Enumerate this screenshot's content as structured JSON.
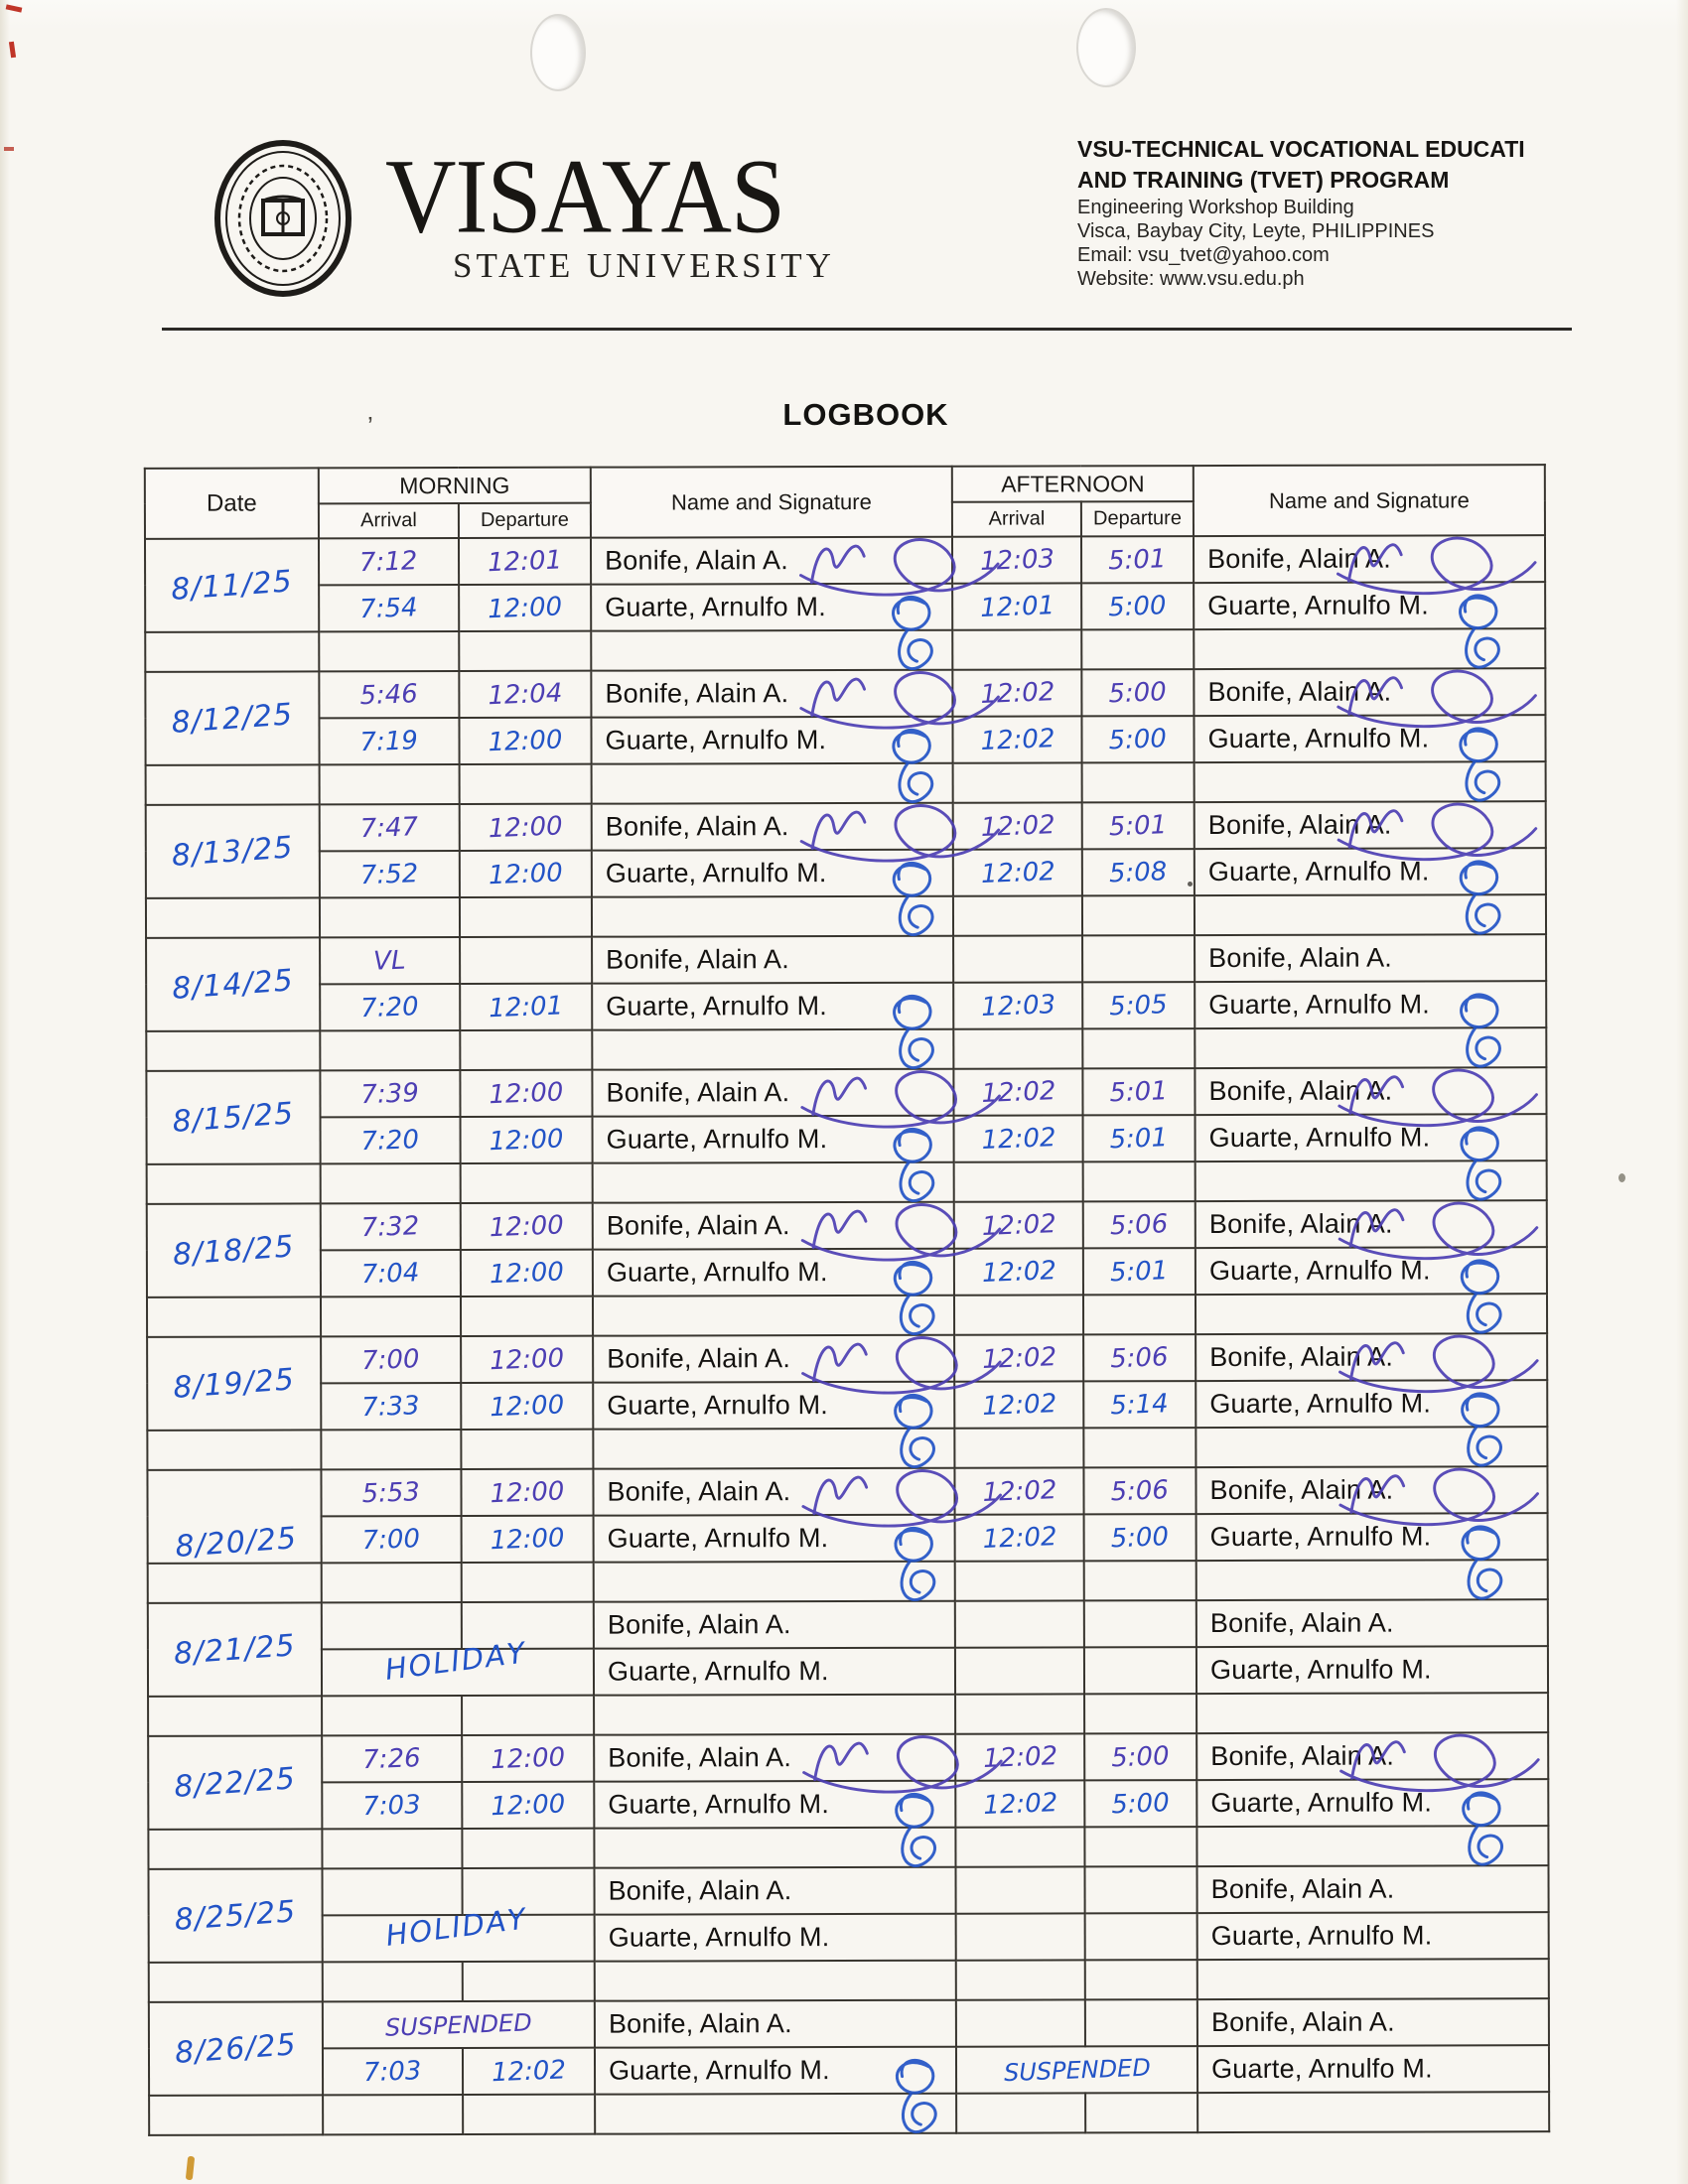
{
  "header": {
    "university_name": "VISAYAS",
    "university_subtitle": "STATE UNIVERSITY",
    "program_line1": "VSU-TECHNICAL VOCATIONAL EDUCATI",
    "program_line2": "AND TRAINING (TVET) PROGRAM",
    "address_line1": "Engineering Workshop Building",
    "address_line2": "Visca, Baybay City, Leyte, PHILIPPINES",
    "email_line": "Email: vsu_tvet@yahoo.com",
    "website_line": "Website: www.vsu.edu.ph"
  },
  "title": "LOGBOOK",
  "colors": {
    "ink_blue": "#2253c6",
    "ink_purple": "#4c3eb3",
    "table_line": "#38352f",
    "paper": "#f8f6f1"
  },
  "table": {
    "headers": {
      "date": "Date",
      "morning": "MORNING",
      "afternoon": "AFTERNOON",
      "arrival": "Arrival",
      "departure": "Departure",
      "name_sig": "Name and Signature"
    },
    "blocks": [
      {
        "date": "8/11/25",
        "rows": [
          {
            "name": "Bonife, Alain A.",
            "ink": "p",
            "m_arr": "7:12",
            "m_dep": "12:01",
            "a_arr": "12:03",
            "a_dep": "5:01",
            "sig_m": true,
            "sig_a": true
          },
          {
            "name": "Guarte, Arnulfo M.",
            "ink": "b",
            "m_arr": "7:54",
            "m_dep": "12:00",
            "a_arr": "12:01",
            "a_dep": "5:00",
            "sig_m": true,
            "sig_a": true
          }
        ]
      },
      {
        "date": "8/12/25",
        "rows": [
          {
            "name": "Bonife, Alain A.",
            "ink": "p",
            "m_arr": "5:46",
            "m_dep": "12:04",
            "a_arr": "12:02",
            "a_dep": "5:00",
            "sig_m": true,
            "sig_a": true
          },
          {
            "name": "Guarte, Arnulfo M.",
            "ink": "b",
            "m_arr": "7:19",
            "m_dep": "12:00",
            "a_arr": "12:02",
            "a_dep": "5:00",
            "sig_m": true,
            "sig_a": true
          }
        ]
      },
      {
        "date": "8/13/25",
        "rows": [
          {
            "name": "Bonife, Alain A.",
            "ink": "p",
            "m_arr": "7:47",
            "m_dep": "12:00",
            "a_arr": "12:02",
            "a_dep": "5:01",
            "sig_m": true,
            "sig_a": true
          },
          {
            "name": "Guarte, Arnulfo M.",
            "ink": "b",
            "m_arr": "7:52",
            "m_dep": "12:00",
            "a_arr": "12:02",
            "a_dep": "5:08",
            "sig_m": true,
            "sig_a": true
          }
        ]
      },
      {
        "date": "8/14/25",
        "rows": [
          {
            "name": "Bonife, Alain A.",
            "ink": "p",
            "m_arr": "VL",
            "m_dep": "",
            "a_arr": "",
            "a_dep": "",
            "sig_m": false,
            "sig_a": false
          },
          {
            "name": "Guarte, Arnulfo M.",
            "ink": "b",
            "m_arr": "7:20",
            "m_dep": "12:01",
            "a_arr": "12:03",
            "a_dep": "5:05",
            "sig_m": true,
            "sig_a": true
          }
        ]
      },
      {
        "date": "8/15/25",
        "rows": [
          {
            "name": "Bonife, Alain A.",
            "ink": "p",
            "m_arr": "7:39",
            "m_dep": "12:00",
            "a_arr": "12:02",
            "a_dep": "5:01",
            "sig_m": true,
            "sig_a": true
          },
          {
            "name": "Guarte, Arnulfo M.",
            "ink": "b",
            "m_arr": "7:20",
            "m_dep": "12:00",
            "a_arr": "12:02",
            "a_dep": "5:01",
            "sig_m": true,
            "sig_a": true
          }
        ]
      },
      {
        "date": "8/18/25",
        "rows": [
          {
            "name": "Bonife, Alain A.",
            "ink": "p",
            "m_arr": "7:32",
            "m_dep": "12:00",
            "a_arr": "12:02",
            "a_dep": "5:06",
            "sig_m": true,
            "sig_a": true
          },
          {
            "name": "Guarte, Arnulfo M.",
            "ink": "b",
            "m_arr": "7:04",
            "m_dep": "12:00",
            "a_arr": "12:02",
            "a_dep": "5:01",
            "sig_m": true,
            "sig_a": true
          }
        ]
      },
      {
        "date": "8/19/25",
        "rows": [
          {
            "name": "Bonife, Alain A.",
            "ink": "p",
            "m_arr": "7:00",
            "m_dep": "12:00",
            "a_arr": "12:02",
            "a_dep": "5:06",
            "sig_m": true,
            "sig_a": true
          },
          {
            "name": "Guarte, Arnulfo M.",
            "ink": "b",
            "m_arr": "7:33",
            "m_dep": "12:00",
            "a_arr": "12:02",
            "a_dep": "5:14",
            "sig_m": true,
            "sig_a": true
          }
        ]
      },
      {
        "date": "8/20/25",
        "date_shift": true,
        "rows": [
          {
            "name": "Bonife, Alain A.",
            "ink": "p",
            "m_arr": "5:53",
            "m_dep": "12:00",
            "a_arr": "12:02",
            "a_dep": "5:06",
            "sig_m": true,
            "sig_a": true
          },
          {
            "name": "Guarte, Arnulfo M.",
            "ink": "b",
            "m_arr": "7:00",
            "m_dep": "12:00",
            "a_arr": "12:02",
            "a_dep": "5:00",
            "sig_m": true,
            "sig_a": true
          }
        ]
      },
      {
        "date": "8/21/25",
        "rows": [
          {
            "name": "Bonife, Alain A.",
            "ink": "b",
            "m_arr": "",
            "m_dep": "",
            "a_arr": "",
            "a_dep": "",
            "sig_m": false,
            "sig_a": false
          },
          {
            "name": "Guarte, Arnulfo M.",
            "ink": "b",
            "m_span": "HOLIDAY",
            "a_arr": "",
            "a_dep": "",
            "sig_m": false,
            "sig_a": false
          }
        ]
      },
      {
        "date": "8/22/25",
        "rows": [
          {
            "name": "Bonife, Alain A.",
            "ink": "p",
            "m_arr": "7:26",
            "m_dep": "12:00",
            "a_arr": "12:02",
            "a_dep": "5:00",
            "sig_m": true,
            "sig_a": true
          },
          {
            "name": "Guarte, Arnulfo M.",
            "ink": "b",
            "m_arr": "7:03",
            "m_dep": "12:00",
            "a_arr": "12:02",
            "a_dep": "5:00",
            "sig_m": true,
            "sig_a": true
          }
        ]
      },
      {
        "date": "8/25/25",
        "rows": [
          {
            "name": "Bonife, Alain A.",
            "ink": "b",
            "m_arr": "",
            "m_dep": "",
            "a_arr": "",
            "a_dep": "",
            "sig_m": false,
            "sig_a": false
          },
          {
            "name": "Guarte, Arnulfo M.",
            "ink": "b",
            "m_span": "HOLIDAY",
            "a_arr": "",
            "a_dep": "",
            "sig_m": false,
            "sig_a": false
          }
        ]
      },
      {
        "date": "8/26/25",
        "rows": [
          {
            "name": "Bonife, Alain A.",
            "ink": "p",
            "m_span": "SUSPENDED",
            "a_arr": "",
            "a_dep": "",
            "sig_m": false,
            "sig_a": false
          },
          {
            "name": "Guarte, Arnulfo M.",
            "ink": "b",
            "m_arr": "7:03",
            "m_dep": "12:02",
            "a_span": "SUSPENDED",
            "sig_m": true,
            "sig_a": false
          }
        ]
      }
    ]
  }
}
